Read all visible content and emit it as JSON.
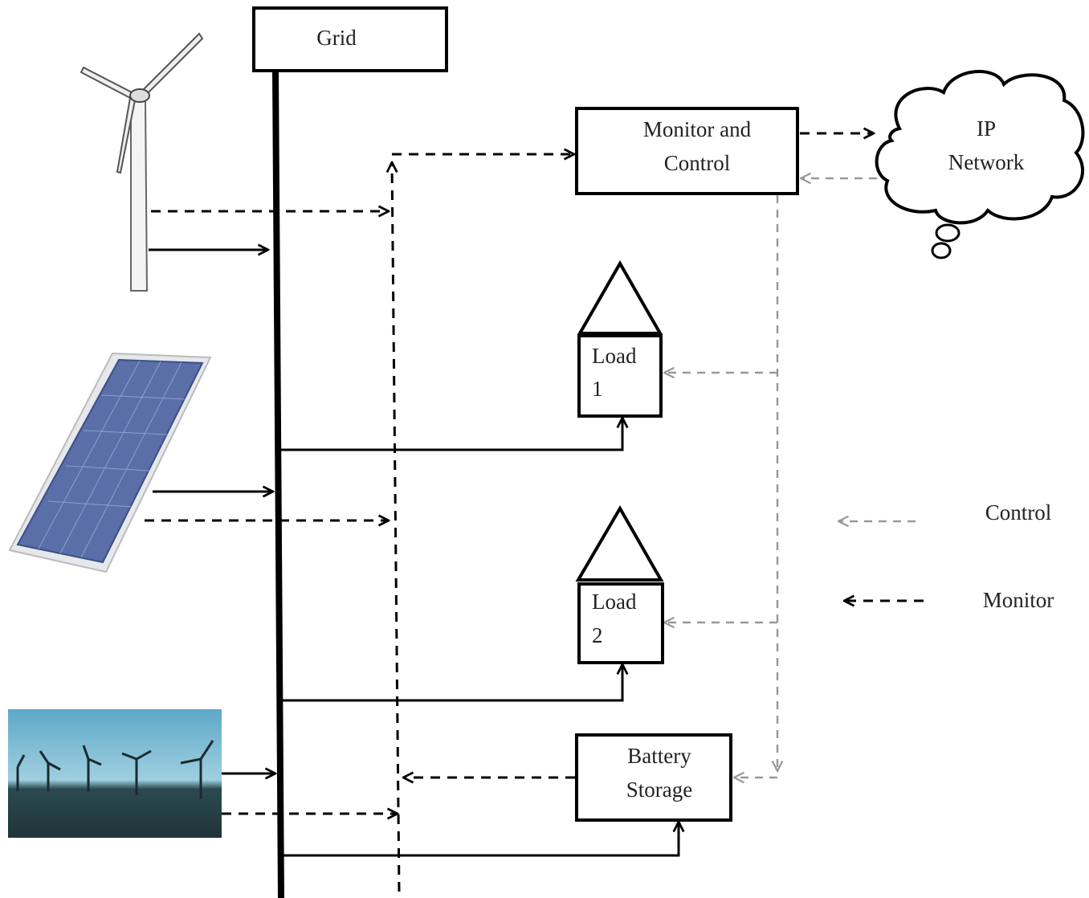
{
  "nodes": {
    "grid": [
      "Grid"
    ],
    "monitor_control": [
      "Monitor and",
      "Control"
    ],
    "ip_network": [
      "IP",
      "Network"
    ],
    "load1": [
      "Load",
      "1"
    ],
    "load2": [
      "Load",
      "2"
    ],
    "battery": [
      "Battery",
      "Storage"
    ]
  },
  "legend": {
    "control": "Control",
    "monitor": "Monitor"
  }
}
